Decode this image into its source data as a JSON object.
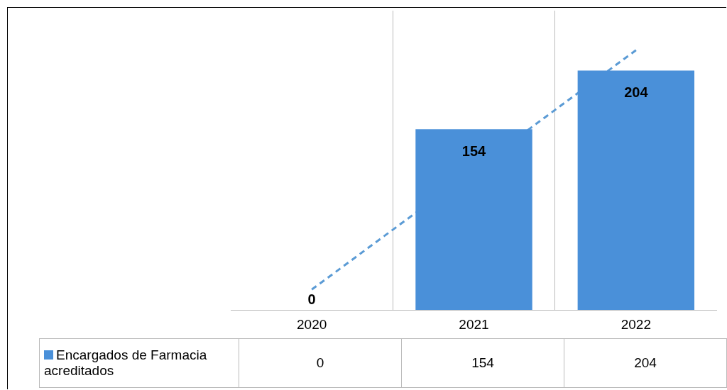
{
  "chart_data": {
    "type": "bar",
    "categories": [
      "2020",
      "2021",
      "2022"
    ],
    "series": [
      {
        "name": "Encargados de Farmacia acreditados",
        "color": "#4a90d9",
        "values": [
          0,
          154,
          204
        ]
      },
      {
        "type": "line",
        "values": [
          17.33,
          119.33,
          221.33
        ],
        "value_labels": [
          null,
          null,
          null
        ],
        "color": "#5b9bd5",
        "line_style": "dashed"
      }
    ],
    "annotations": [
      {
        "text": "0",
        "x": "2020",
        "y": 0
      },
      {
        "text": "154",
        "x": "2021",
        "y": 154
      },
      {
        "text": "204",
        "x": "2022",
        "y": 204
      }
    ],
    "ylim": [
      0,
      255
    ],
    "data_labels": true,
    "legend": "bottom left",
    "tick_labels": "x",
    "grid": "x"
  }
}
